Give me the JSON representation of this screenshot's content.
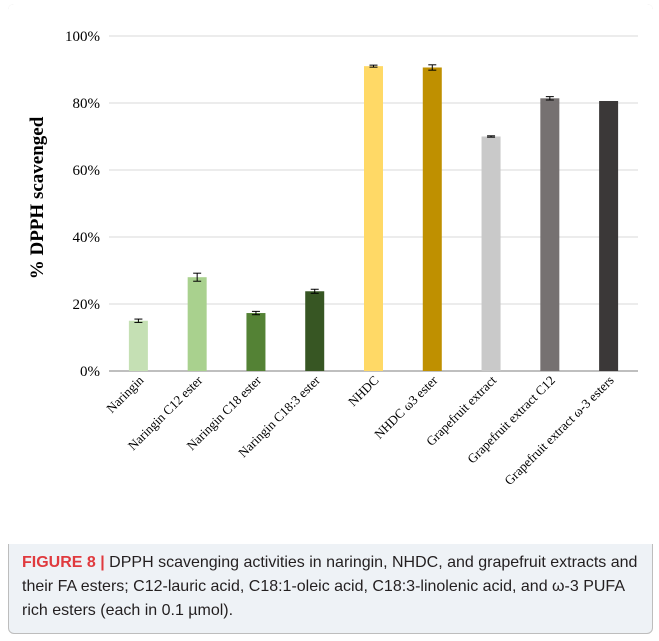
{
  "chart_data": {
    "type": "bar",
    "ylabel": "% DPPH scavenged",
    "ylim": [
      0,
      100
    ],
    "yticks": [
      "0%",
      "20%",
      "40%",
      "60%",
      "80%",
      "100%"
    ],
    "grid": true,
    "categories": [
      "Naringin",
      "Naringin C12 ester",
      "Naringin C18 ester",
      "Naringin C18:3 ester",
      "NHDC",
      "NHDC ω3 ester",
      "Grapefruit extract",
      "Grapefruit extract C12",
      "Grapefruit extract ω-3 esters"
    ],
    "values": [
      15,
      28,
      17.3,
      23.8,
      91,
      90.6,
      70,
      81.4,
      80.6
    ],
    "errors": [
      0.5,
      1.2,
      0.5,
      0.6,
      0.3,
      0.8,
      0.2,
      0.5,
      0
    ],
    "colors": [
      "#c5e0b4",
      "#a9d18e",
      "#548235",
      "#375623",
      "#ffd966",
      "#bf9000",
      "#c9c9c9",
      "#767171",
      "#3b3838"
    ]
  },
  "caption": {
    "label": "FIGURE 8 |",
    "text": " DPPH scavenging activities in naringin, NHDC, and grapefruit extracts and their FA esters; C12-lauric acid, C18:1-oleic acid, C18:3-linolenic acid, and ω-3 PUFA rich esters (each in 0.1 µmol)."
  }
}
